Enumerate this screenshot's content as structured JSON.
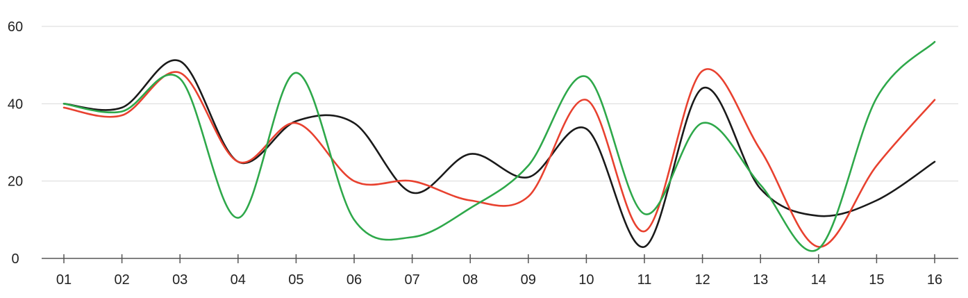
{
  "chart_data": {
    "type": "line",
    "categories": [
      "01",
      "02",
      "03",
      "04",
      "05",
      "06",
      "07",
      "08",
      "09",
      "10",
      "11",
      "12",
      "13",
      "14",
      "15",
      "16"
    ],
    "ylim": [
      0,
      60
    ],
    "yticks": [
      0,
      20,
      40,
      60
    ],
    "grid": true,
    "smooth": true,
    "series": [
      {
        "color": "#1a1a1a",
        "values": [
          40,
          39,
          51,
          25,
          35.5,
          35,
          17,
          27,
          21,
          33.5,
          3,
          44,
          18,
          11,
          15,
          25
        ]
      },
      {
        "color": "#e8412f",
        "values": [
          39,
          37,
          48,
          25,
          35,
          20,
          20,
          15,
          16,
          41,
          7,
          48.5,
          28,
          3,
          24,
          41
        ]
      },
      {
        "color": "#2ea84a",
        "values": [
          40,
          38,
          46.5,
          10.5,
          48,
          10,
          5.5,
          13,
          24,
          47,
          11.5,
          35,
          19,
          2.5,
          41.5,
          56
        ]
      }
    ]
  }
}
